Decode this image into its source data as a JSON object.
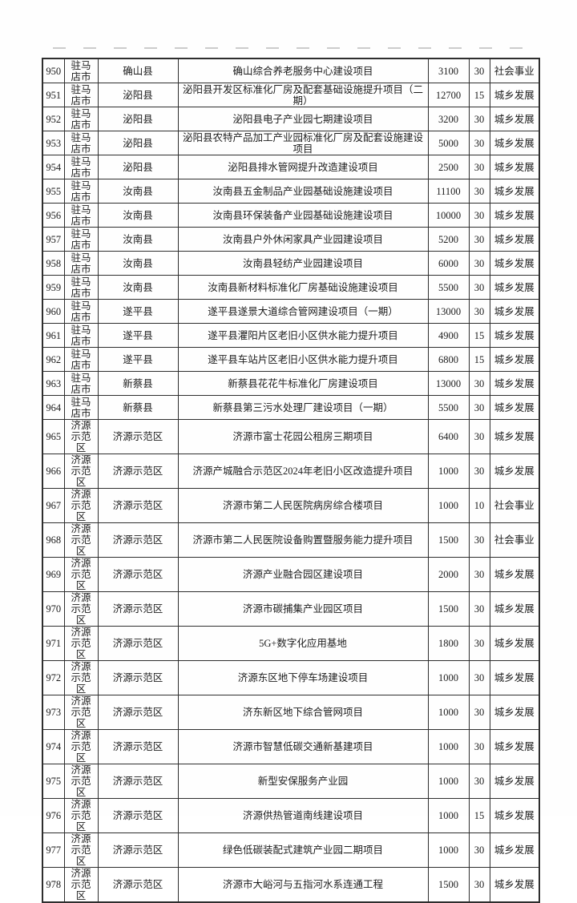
{
  "page": {
    "background": "#fefefe",
    "border_color": "#2e2e2e",
    "text_color": "#1c1c1c"
  },
  "table": {
    "rows": [
      {
        "no": "950",
        "city": "驻马店市",
        "county": "确山县",
        "project": "确山综合养老服务中心建设项目",
        "amount": "3100",
        "percent": "30",
        "category": "社会事业"
      },
      {
        "no": "951",
        "city": "驻马店市",
        "county": "泌阳县",
        "project": "泌阳县开发区标准化厂房及配套基础设施提升项目（二期）",
        "amount": "12700",
        "percent": "15",
        "category": "城乡发展"
      },
      {
        "no": "952",
        "city": "驻马店市",
        "county": "泌阳县",
        "project": "泌阳县电子产业园七期建设项目",
        "amount": "3200",
        "percent": "30",
        "category": "城乡发展"
      },
      {
        "no": "953",
        "city": "驻马店市",
        "county": "泌阳县",
        "project": "泌阳县农特产品加工产业园标准化厂房及配套设施建设项目",
        "amount": "5000",
        "percent": "30",
        "category": "城乡发展"
      },
      {
        "no": "954",
        "city": "驻马店市",
        "county": "泌阳县",
        "project": "泌阳县排水管网提升改造建设项目",
        "amount": "2500",
        "percent": "30",
        "category": "城乡发展"
      },
      {
        "no": "955",
        "city": "驻马店市",
        "county": "汝南县",
        "project": "汝南县五金制品产业园基础设施建设项目",
        "amount": "11100",
        "percent": "30",
        "category": "城乡发展"
      },
      {
        "no": "956",
        "city": "驻马店市",
        "county": "汝南县",
        "project": "汝南县环保装备产业园基础设施建设项目",
        "amount": "10000",
        "percent": "30",
        "category": "城乡发展"
      },
      {
        "no": "957",
        "city": "驻马店市",
        "county": "汝南县",
        "project": "汝南县户外休闲家具产业园建设项目",
        "amount": "5200",
        "percent": "30",
        "category": "城乡发展"
      },
      {
        "no": "958",
        "city": "驻马店市",
        "county": "汝南县",
        "project": "汝南县轻纺产业园建设项目",
        "amount": "6000",
        "percent": "30",
        "category": "城乡发展"
      },
      {
        "no": "959",
        "city": "驻马店市",
        "county": "汝南县",
        "project": "汝南县新材料标准化厂房基础设施建设项目",
        "amount": "5500",
        "percent": "30",
        "category": "城乡发展"
      },
      {
        "no": "960",
        "city": "驻马店市",
        "county": "遂平县",
        "project": "遂平县遂景大道综合管网建设项目（一期）",
        "amount": "13000",
        "percent": "30",
        "category": "城乡发展"
      },
      {
        "no": "961",
        "city": "驻马店市",
        "county": "遂平县",
        "project": "遂平县灈阳片区老旧小区供水能力提升项目",
        "amount": "4900",
        "percent": "15",
        "category": "城乡发展"
      },
      {
        "no": "962",
        "city": "驻马店市",
        "county": "遂平县",
        "project": "遂平县车站片区老旧小区供水能力提升项目",
        "amount": "6800",
        "percent": "15",
        "category": "城乡发展"
      },
      {
        "no": "963",
        "city": "驻马店市",
        "county": "新蔡县",
        "project": "新蔡县花花牛标准化厂房建设项目",
        "amount": "13000",
        "percent": "30",
        "category": "城乡发展"
      },
      {
        "no": "964",
        "city": "驻马店市",
        "county": "新蔡县",
        "project": "新蔡县第三污水处理厂建设项目（一期）",
        "amount": "5500",
        "percent": "30",
        "category": "城乡发展"
      },
      {
        "no": "965",
        "city": "济源示范区",
        "county": "济源示范区",
        "project": "济源市富士花园公租房三期项目",
        "amount": "6400",
        "percent": "30",
        "category": "城乡发展"
      },
      {
        "no": "966",
        "city": "济源示范区",
        "county": "济源示范区",
        "project": "济源产城融合示范区2024年老旧小区改造提升项目",
        "amount": "1000",
        "percent": "30",
        "category": "城乡发展"
      },
      {
        "no": "967",
        "city": "济源示范区",
        "county": "济源示范区",
        "project": "济源市第二人民医院病房综合楼项目",
        "amount": "1000",
        "percent": "10",
        "category": "社会事业"
      },
      {
        "no": "968",
        "city": "济源示范区",
        "county": "济源示范区",
        "project": "济源市第二人民医院设备购置暨服务能力提升项目",
        "amount": "1500",
        "percent": "30",
        "category": "社会事业"
      },
      {
        "no": "969",
        "city": "济源示范区",
        "county": "济源示范区",
        "project": "济源产业融合园区建设项目",
        "amount": "2000",
        "percent": "30",
        "category": "城乡发展"
      },
      {
        "no": "970",
        "city": "济源示范区",
        "county": "济源示范区",
        "project": "济源市碳捕集产业园区项目",
        "amount": "1500",
        "percent": "30",
        "category": "城乡发展"
      },
      {
        "no": "971",
        "city": "济源示范区",
        "county": "济源示范区",
        "project": "5G+数字化应用基地",
        "amount": "1800",
        "percent": "30",
        "category": "城乡发展"
      },
      {
        "no": "972",
        "city": "济源示范区",
        "county": "济源示范区",
        "project": "济源东区地下停车场建设项目",
        "amount": "1000",
        "percent": "30",
        "category": "城乡发展"
      },
      {
        "no": "973",
        "city": "济源示范区",
        "county": "济源示范区",
        "project": "济东新区地下综合管网项目",
        "amount": "1000",
        "percent": "30",
        "category": "城乡发展"
      },
      {
        "no": "974",
        "city": "济源示范区",
        "county": "济源示范区",
        "project": "济源市智慧低碳交通新基建项目",
        "amount": "1000",
        "percent": "30",
        "category": "城乡发展"
      },
      {
        "no": "975",
        "city": "济源示范区",
        "county": "济源示范区",
        "project": "新型安保服务产业园",
        "amount": "1000",
        "percent": "30",
        "category": "城乡发展"
      },
      {
        "no": "976",
        "city": "济源示范区",
        "county": "济源示范区",
        "project": "济源供热管道南线建设项目",
        "amount": "1000",
        "percent": "15",
        "category": "城乡发展"
      },
      {
        "no": "977",
        "city": "济源示范区",
        "county": "济源示范区",
        "project": "绿色低碳装配式建筑产业园二期项目",
        "amount": "1000",
        "percent": "30",
        "category": "城乡发展"
      },
      {
        "no": "978",
        "city": "济源示范区",
        "county": "济源示范区",
        "project": "济源市大峪河与五指河水系连通工程",
        "amount": "1500",
        "percent": "30",
        "category": "城乡发展"
      }
    ]
  }
}
